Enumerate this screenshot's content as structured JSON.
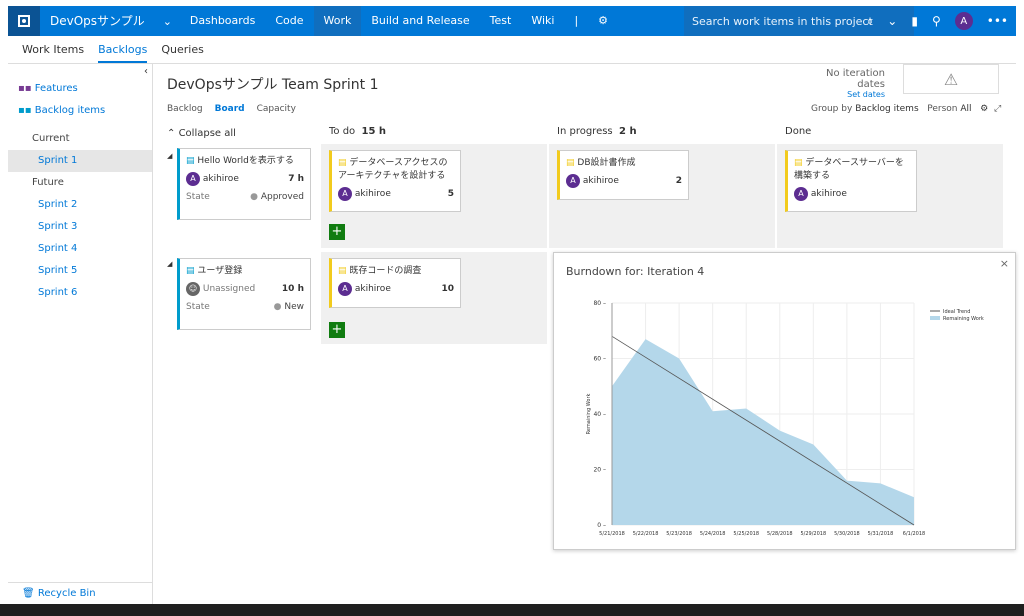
{
  "topbar": {
    "project": "DevOpsサンプル",
    "nav": [
      "Dashboards",
      "Code",
      "Work",
      "Build and Release",
      "Test",
      "Wiki"
    ],
    "search_placeholder": "Search work items in this project",
    "avatar": "A",
    "accent": "#0078d7"
  },
  "subnav": {
    "items": [
      "Work Items",
      "Backlogs",
      "Queries"
    ]
  },
  "sidebar": {
    "features": "Features",
    "backlog_items": "Backlog items",
    "current": "Current",
    "sprint1": "Sprint 1",
    "future": "Future",
    "sprints": [
      "Sprint 2",
      "Sprint 3",
      "Sprint 4",
      "Sprint 5",
      "Sprint 6"
    ],
    "recycle": "Recycle Bin"
  },
  "main": {
    "title": "DevOpsサンプル Team Sprint 1",
    "tabs": [
      "Backlog",
      "Board",
      "Capacity"
    ],
    "no_iter": "No iteration dates",
    "set_dates": "Set dates",
    "group_by": "Group by",
    "group_by_value": "Backlog items",
    "person": "Person",
    "person_value": "All",
    "collapse_all": "Collapse all",
    "columns": [
      {
        "name": "To do",
        "count": "15 h"
      },
      {
        "name": "In progress",
        "count": "2 h"
      },
      {
        "name": "Done",
        "count": ""
      }
    ]
  },
  "cards": {
    "pbi1": {
      "title": "Hello Worldを表示する",
      "user": "akihiroe",
      "hours": "7 h",
      "state_label": "State",
      "state": "Approved"
    },
    "t1": {
      "title": "データベースアクセスのアーキテクチャを設計する",
      "user": "akihiroe",
      "rem": "5"
    },
    "t2": {
      "title": "DB設計書作成",
      "user": "akihiroe",
      "rem": "2"
    },
    "t3": {
      "title": "データベースサーバーを構築する",
      "user": "akihiroe"
    },
    "pbi2": {
      "title": "ユーザ登録",
      "user": "Unassigned",
      "hours": "10 h",
      "state_label": "State",
      "state": "New"
    },
    "t4": {
      "title": "既存コードの調査",
      "user": "akihiroe",
      "rem": "10"
    }
  },
  "burndown": {
    "title": "Burndown for: Iteration 4"
  },
  "chart_data": {
    "type": "area",
    "x": [
      "5/21/2018",
      "5/22/2018",
      "5/23/2018",
      "5/24/2018",
      "5/25/2018",
      "5/28/2018",
      "5/29/2018",
      "5/30/2018",
      "5/31/2018",
      "6/1/2018"
    ],
    "series": [
      {
        "name": "Remaining Work",
        "values": [
          50,
          67,
          60,
          41,
          42,
          34,
          29,
          16,
          15,
          10
        ]
      },
      {
        "name": "Ideal Trend",
        "values": [
          68,
          60,
          53,
          45,
          38,
          30,
          23,
          15,
          8,
          0
        ]
      }
    ],
    "ylabel": "Remaining Work",
    "ylim": [
      0,
      80
    ],
    "yticks": [
      0,
      20,
      40,
      60,
      80
    ],
    "legend": "top-right",
    "colors": {
      "area": "#b4d7ea",
      "ideal": "#555555"
    }
  }
}
